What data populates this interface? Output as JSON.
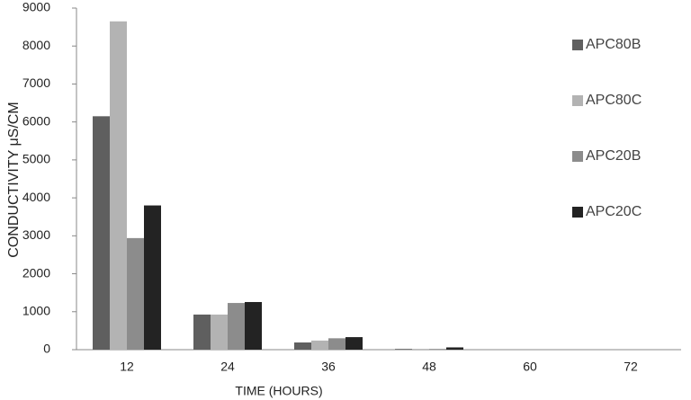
{
  "chart_data": {
    "type": "bar",
    "xlabel": "TIME (HOURS)",
    "ylabel": "CONDUCTIVITY μS/CM",
    "categories": [
      "12",
      "24",
      "36",
      "48",
      "60",
      "72"
    ],
    "series": [
      {
        "name": "APC80B",
        "color": "#5f5f5f",
        "values": [
          6150,
          925,
          190,
          20,
          0,
          0
        ]
      },
      {
        "name": "APC80C",
        "color": "#b3b3b3",
        "values": [
          8650,
          925,
          240,
          20,
          0,
          0
        ]
      },
      {
        "name": "APC20B",
        "color": "#8c8c8c",
        "values": [
          2940,
          1230,
          300,
          20,
          0,
          0
        ]
      },
      {
        "name": "APC20C",
        "color": "#232323",
        "values": [
          3800,
          1255,
          330,
          60,
          0,
          0
        ]
      }
    ],
    "ylim": [
      0,
      9000
    ],
    "yticks": [
      0,
      1000,
      2000,
      3000,
      4000,
      5000,
      6000,
      7000,
      8000,
      9000
    ],
    "legend": "right"
  }
}
